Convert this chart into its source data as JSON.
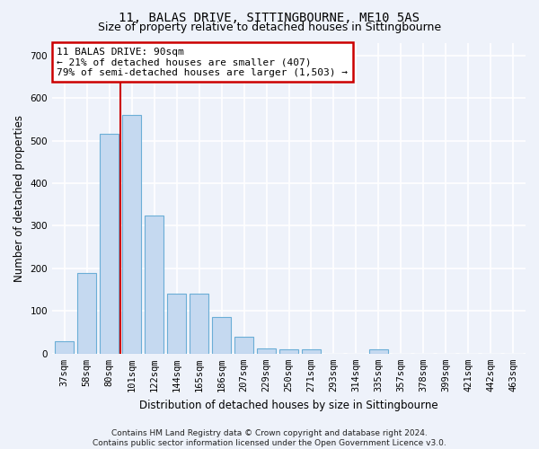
{
  "title": "11, BALAS DRIVE, SITTINGBOURNE, ME10 5AS",
  "subtitle": "Size of property relative to detached houses in Sittingbourne",
  "xlabel": "Distribution of detached houses by size in Sittingbourne",
  "ylabel": "Number of detached properties",
  "categories": [
    "37sqm",
    "58sqm",
    "80sqm",
    "101sqm",
    "122sqm",
    "144sqm",
    "165sqm",
    "186sqm",
    "207sqm",
    "229sqm",
    "250sqm",
    "271sqm",
    "293sqm",
    "314sqm",
    "335sqm",
    "357sqm",
    "378sqm",
    "399sqm",
    "421sqm",
    "442sqm",
    "463sqm"
  ],
  "values": [
    30,
    190,
    515,
    560,
    325,
    140,
    140,
    85,
    40,
    13,
    10,
    10,
    0,
    0,
    10,
    0,
    0,
    0,
    0,
    0,
    0
  ],
  "bar_color": "#c5d9f0",
  "bar_edgecolor": "#6baed6",
  "ylim": [
    0,
    730
  ],
  "yticks": [
    0,
    100,
    200,
    300,
    400,
    500,
    600,
    700
  ],
  "red_line_x": 2.5,
  "annotation_text": "11 BALAS DRIVE: 90sqm\n← 21% of detached houses are smaller (407)\n79% of semi-detached houses are larger (1,503) →",
  "annotation_box_facecolor": "#ffffff",
  "annotation_box_edgecolor": "#cc0000",
  "footer": "Contains HM Land Registry data © Crown copyright and database right 2024.\nContains public sector information licensed under the Open Government Licence v3.0.",
  "background_color": "#eef2fa",
  "plot_background_color": "#eef2fa",
  "grid_color": "#ffffff",
  "title_fontsize": 10,
  "subtitle_fontsize": 9,
  "xlabel_fontsize": 8.5,
  "ylabel_fontsize": 8.5,
  "tick_fontsize": 7.5,
  "footer_fontsize": 6.5,
  "annotation_fontsize": 8
}
